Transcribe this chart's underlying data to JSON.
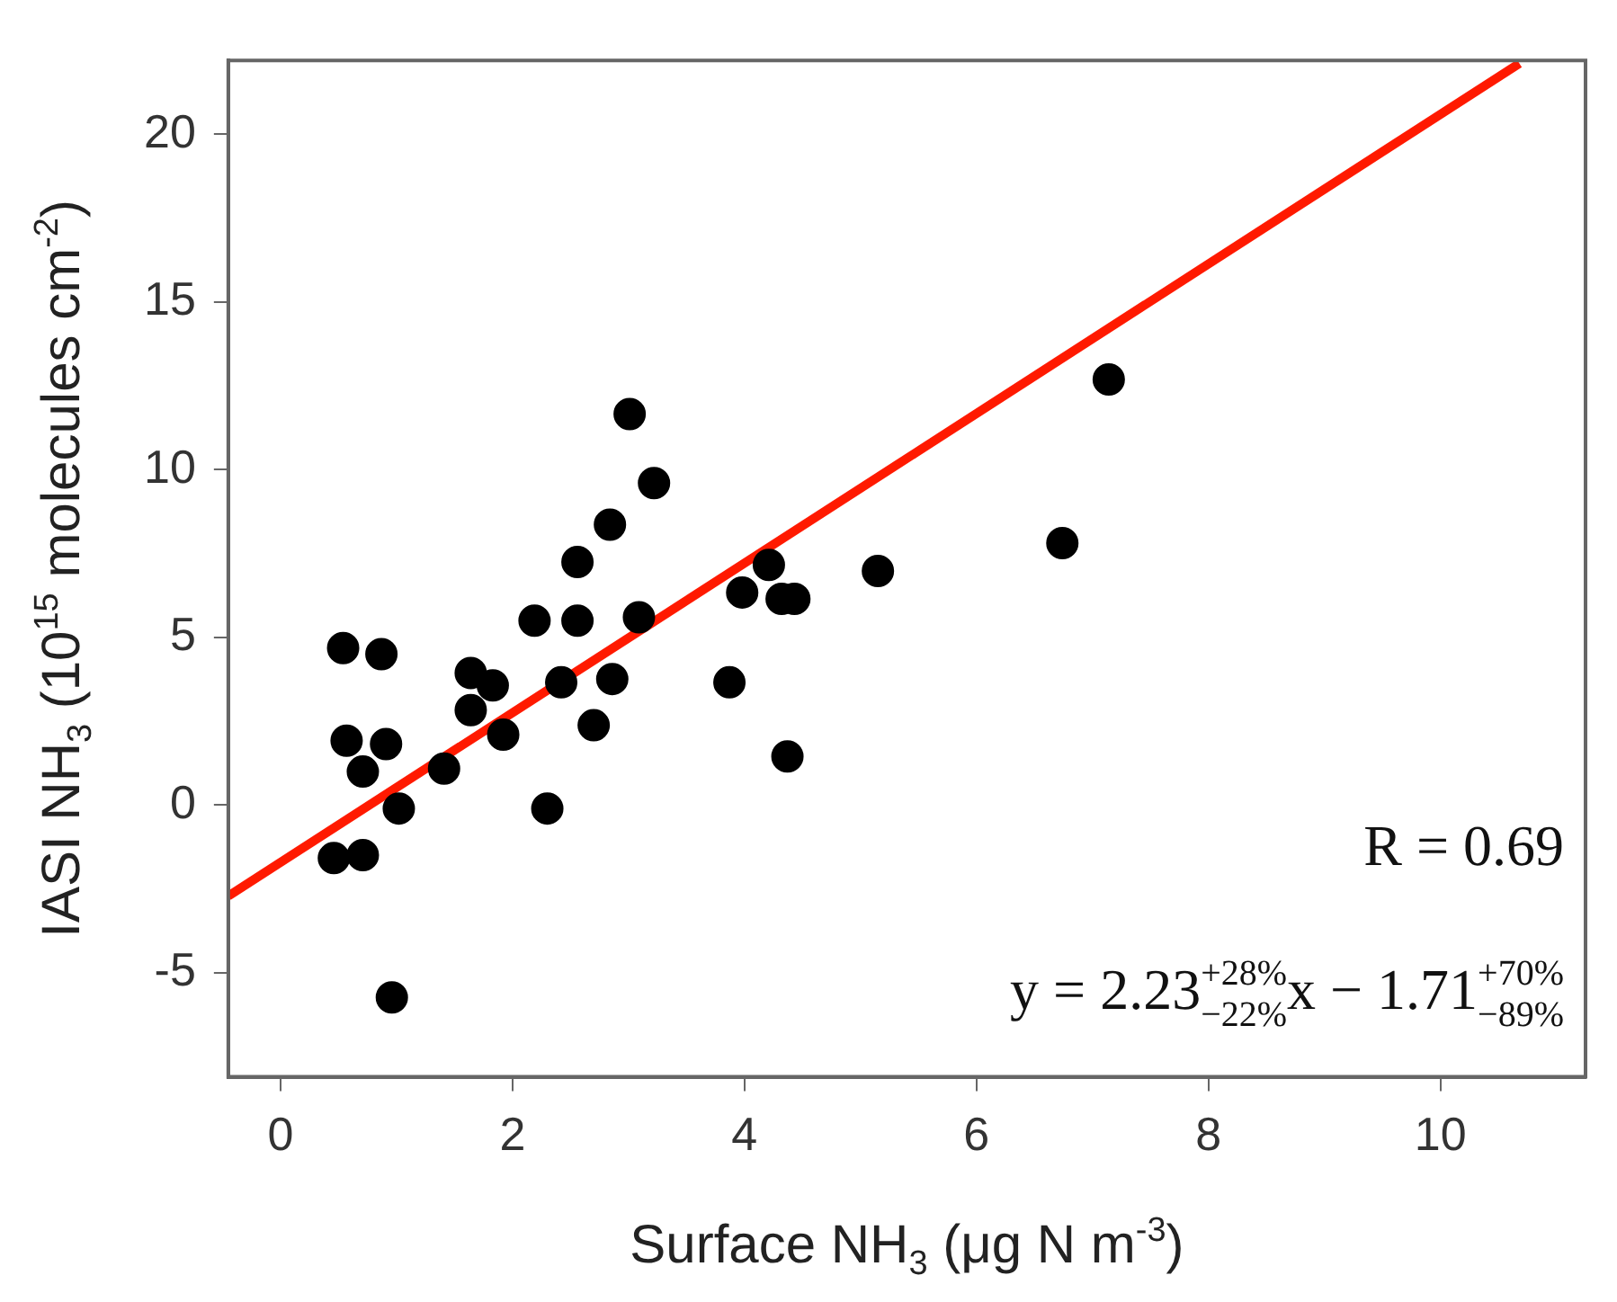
{
  "chart_data": {
    "type": "scatter",
    "xlabel": "Surface NH$_{3}$ (μg N m$^{-3}$)",
    "ylabel": "IASI NH$_{3}$ (10$^{15}$ molecules cm$^{-2}$)",
    "xlim": [
      -0.45,
      11.25
    ],
    "ylim": [
      -8.1,
      22.2
    ],
    "xticks": [
      0,
      2,
      4,
      6,
      8,
      10
    ],
    "yticks": [
      -5,
      0,
      5,
      10,
      15,
      20
    ],
    "grid": false,
    "legend": false,
    "marker": "circle",
    "series": [
      {
        "type": "scatter",
        "color": "#000000",
        "x": [
          3.01,
          3.22,
          2.84,
          2.56,
          2.19,
          2.56,
          3.09,
          0.54,
          0.87,
          1.64,
          1.83,
          2.42,
          2.86,
          1.64,
          1.92,
          2.7,
          3.87,
          4.37,
          3.98,
          4.21,
          4.32,
          4.43,
          5.15,
          0.57,
          0.91,
          0.71,
          1.41,
          1.02,
          2.3,
          0.46,
          0.71,
          0.96,
          7.14,
          6.74
        ],
        "values": [
          11.66,
          9.6,
          8.36,
          7.25,
          5.5,
          5.5,
          5.6,
          4.68,
          4.5,
          3.94,
          3.57,
          3.66,
          3.76,
          2.83,
          2.1,
          2.38,
          3.66,
          1.45,
          6.34,
          7.16,
          6.15,
          6.15,
          6.98,
          1.92,
          1.82,
          1.0,
          1.09,
          -0.1,
          -0.1,
          -1.58,
          -1.49,
          -5.73,
          12.69,
          7.81
        ]
      },
      {
        "type": "line",
        "color": "#ff1a00",
        "line_style": "solid",
        "marker": "none",
        "x": [
          -0.45,
          10.68
        ],
        "values": [
          -2.71,
          22.11
        ]
      }
    ],
    "annotations": [
      "R = 0.69",
      "y = 2.23$^{+28%}$$_{−22%}$x − 1.71$^{+70%}$$_{−89%}$"
    ]
  }
}
